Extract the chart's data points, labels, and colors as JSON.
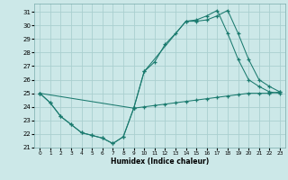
{
  "bg_color": "#cce8e8",
  "line_color": "#1a7a6e",
  "grid_color": "#aacfcf",
  "xlabel": "Humidex (Indice chaleur)",
  "xlim": [
    -0.5,
    23.5
  ],
  "ylim": [
    21,
    31.6
  ],
  "yticks": [
    21,
    22,
    23,
    24,
    25,
    26,
    27,
    28,
    29,
    30,
    31
  ],
  "xticks": [
    0,
    1,
    2,
    3,
    4,
    5,
    6,
    7,
    8,
    9,
    10,
    11,
    12,
    13,
    14,
    15,
    16,
    17,
    18,
    19,
    20,
    21,
    22,
    23
  ],
  "line1_x": [
    0,
    1,
    2,
    3,
    4,
    5,
    6,
    7,
    8,
    9,
    10,
    11,
    12,
    13,
    14,
    15,
    16,
    17,
    18,
    19,
    20,
    21,
    22,
    23
  ],
  "line1_y": [
    25.0,
    24.3,
    23.3,
    22.7,
    22.1,
    21.9,
    21.7,
    21.3,
    21.8,
    23.9,
    24.0,
    24.1,
    24.2,
    24.3,
    24.4,
    24.5,
    24.6,
    24.7,
    24.8,
    24.9,
    25.0,
    25.0,
    25.0,
    25.1
  ],
  "line2_x": [
    0,
    1,
    2,
    3,
    4,
    5,
    6,
    7,
    8,
    9,
    10,
    11,
    12,
    13,
    14,
    15,
    16,
    17,
    18,
    19,
    20,
    21,
    22,
    23
  ],
  "line2_y": [
    25.0,
    24.3,
    23.3,
    22.7,
    22.1,
    21.9,
    21.7,
    21.3,
    21.8,
    23.9,
    26.6,
    27.3,
    28.6,
    29.4,
    30.3,
    30.4,
    30.7,
    31.1,
    29.4,
    27.5,
    26.0,
    25.5,
    25.1,
    25.0
  ],
  "line3_x": [
    0,
    9,
    10,
    14,
    15,
    16,
    17,
    18,
    19,
    20,
    21,
    22,
    23
  ],
  "line3_y": [
    25.0,
    23.9,
    26.6,
    30.3,
    30.3,
    30.4,
    30.7,
    31.1,
    29.4,
    27.5,
    26.0,
    25.5,
    25.1
  ]
}
